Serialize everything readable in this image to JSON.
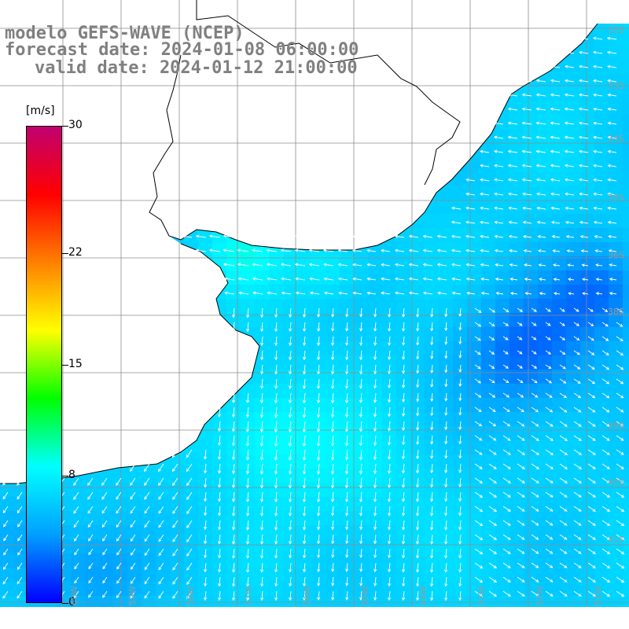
{
  "titles": {
    "model": "modelo GEFS-WAVE (NCEP)",
    "forecast": "forecast date: 2024-01-08 06:00:00",
    "valid": "valid date: 2024-01-12 21:00:00"
  },
  "colorbar": {
    "unit": "[m/s]",
    "min": 0,
    "max": 30,
    "ticks": [
      {
        "value": 30,
        "label": "30"
      },
      {
        "value": 22,
        "label": "22"
      },
      {
        "value": 15,
        "label": "15"
      },
      {
        "value": 8,
        "label": "8"
      },
      {
        "value": 0,
        "label": "0"
      }
    ],
    "colors": [
      "#0000ff",
      "#00a0ff",
      "#00ffff",
      "#00ff00",
      "#ffff00",
      "#ff8000",
      "#ff0000",
      "#c00070"
    ]
  },
  "map": {
    "land_color": "#ffffff",
    "grid_color": "#8c8c8c",
    "coast_color": "#000000",
    "arrow_color": "#ffffff",
    "lat_labels": [
      "32S",
      "33S",
      "34S",
      "35S",
      "36S",
      "38S",
      "39S",
      "40S",
      "41S"
    ],
    "lon_labels": [
      "60W",
      "59W",
      "58W",
      "57W",
      "56W",
      "55W",
      "54W",
      "53W",
      "52W",
      "51W"
    ]
  }
}
